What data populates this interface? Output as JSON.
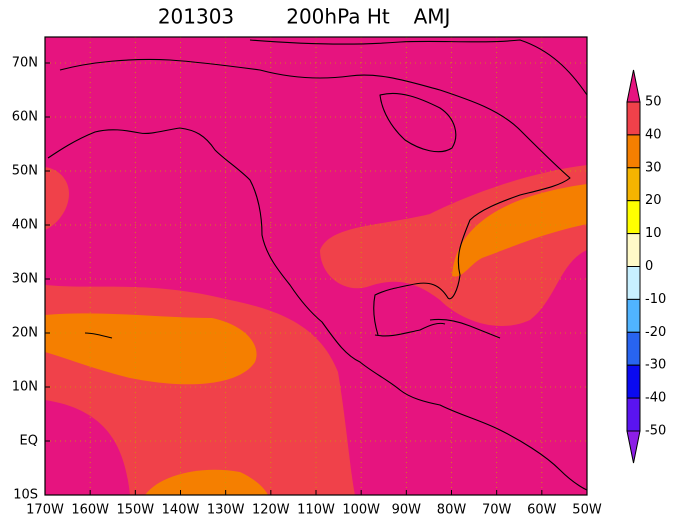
{
  "title": {
    "date": "201303",
    "field": "200hPa Ht",
    "season": "AMJ"
  },
  "map": {
    "lon_labels": [
      "170W",
      "160W",
      "150W",
      "140W",
      "130W",
      "120W",
      "110W",
      "100W",
      "90W",
      "80W",
      "70W",
      "60W",
      "50W"
    ],
    "lat_labels": [
      "70N",
      "60N",
      "50N",
      "40N",
      "30N",
      "20N",
      "10N",
      "EQ",
      "10S"
    ]
  },
  "colorbar": {
    "labels": [
      "50",
      "40",
      "30",
      "20",
      "10",
      "0",
      "-10",
      "-20",
      "-30",
      "-40",
      "-50"
    ],
    "colors": [
      "#e6147f",
      "#f0414a",
      "#f57f00",
      "#f5b400",
      "#ffff00",
      "#fffac8",
      "#c8f0ff",
      "#50b4ff",
      "#2864f0",
      "#0a0af0",
      "#5a14f0",
      "#8c1ee6"
    ]
  }
}
